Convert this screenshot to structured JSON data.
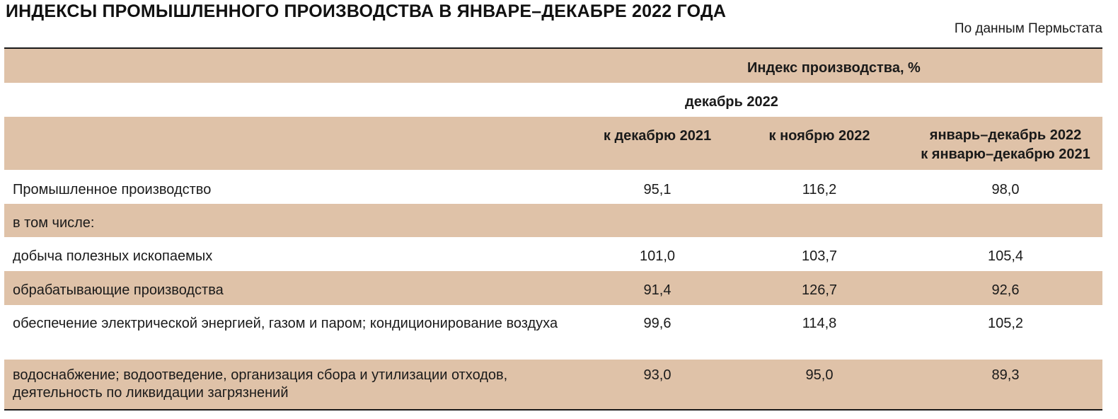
{
  "title": "ИНДЕКСЫ ПРОМЫШЛЕННОГО ПРОИЗВОДСТВА В ЯНВАРЕ–ДЕКАБРЕ 2022 ГОДА",
  "source": "По данным Пермьстата",
  "header": {
    "group": "Индекс производства, %",
    "subgroup": "декабрь 2022",
    "columns": [
      "к декабрю 2021",
      "к ноябрю 2022",
      "январь–декабрь 2022",
      "к январю–декабрю 2021"
    ]
  },
  "rows": [
    {
      "label": "Промышленное производство",
      "v1": "95,1",
      "v2": "116,2",
      "v3": "98,0"
    },
    {
      "label": "в том числе:",
      "v1": "",
      "v2": "",
      "v3": ""
    },
    {
      "label": "добыча полезных ископаемых",
      "v1": "101,0",
      "v2": "103,7",
      "v3": "105,4"
    },
    {
      "label": "обрабатывающие производства",
      "v1": "91,4",
      "v2": "126,7",
      "v3": "92,6"
    },
    {
      "label": "обеспечение электрической энергией, газом и паром; кондиционирование воздуха",
      "v1": "99,6",
      "v2": "114,8",
      "v3": "105,2"
    },
    {
      "label": "водоснабжение; водоотведение, организация сбора и утилизации отходов, деятельность по ликвидации загрязнений",
      "v1": "93,0",
      "v2": "95,0",
      "v3": "89,3"
    }
  ]
}
